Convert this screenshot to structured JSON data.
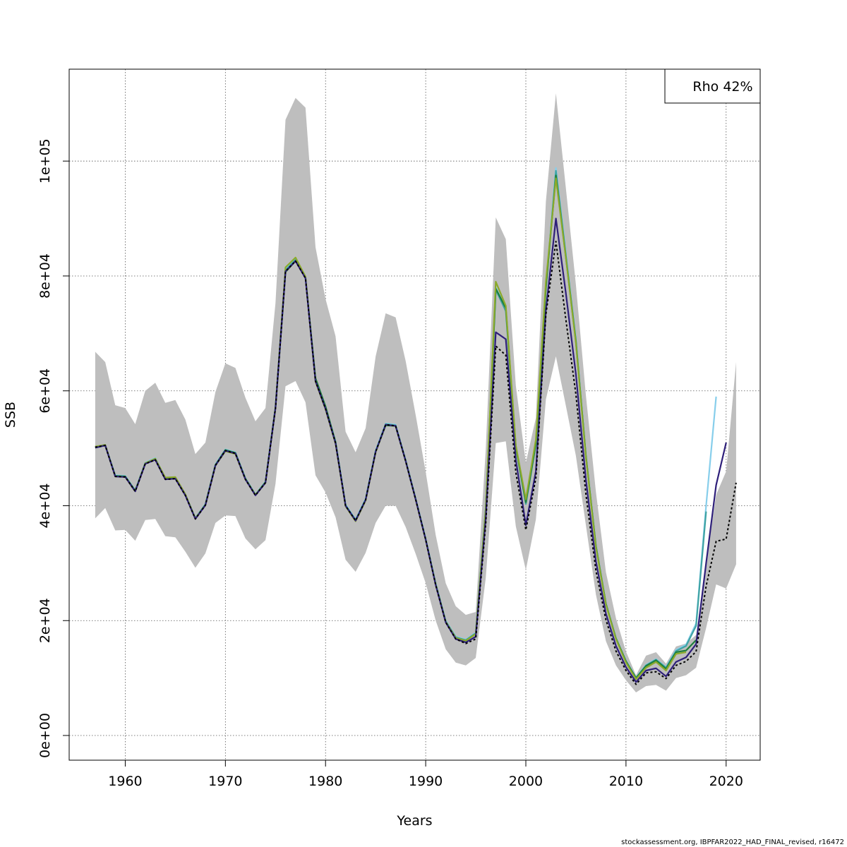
{
  "chart_data": {
    "type": "line",
    "xlabel": "Years",
    "ylabel": "SSB",
    "xlim": [
      1954.4,
      2023.4
    ],
    "ylim": [
      -4300,
      116000
    ],
    "xticks": [
      1960,
      1970,
      1980,
      1990,
      2000,
      2010,
      2020
    ],
    "xtick_labels": [
      "1960",
      "1970",
      "1980",
      "1990",
      "2000",
      "2010",
      "2020"
    ],
    "yticks": [
      0,
      20000,
      40000,
      60000,
      80000,
      100000
    ],
    "ytick_labels": [
      "0e+00",
      "2e+04",
      "4e+04",
      "6e+04",
      "8e+04",
      "1e+05"
    ],
    "grid": true,
    "legend": {
      "placement": "top-right",
      "text": "Rho 42%"
    },
    "band": {
      "color": "#bebebe",
      "x": [
        1957,
        1958,
        1959,
        1960,
        1961,
        1962,
        1963,
        1964,
        1965,
        1966,
        1967,
        1968,
        1969,
        1970,
        1971,
        1972,
        1973,
        1974,
        1975,
        1976,
        1977,
        1978,
        1979,
        1980,
        1981,
        1982,
        1983,
        1984,
        1985,
        1986,
        1987,
        1988,
        1989,
        1990,
        1991,
        1992,
        1993,
        1994,
        1995,
        1996,
        1997,
        1998,
        1999,
        2000,
        2001,
        2002,
        2003,
        2004,
        2005,
        2006,
        2007,
        2008,
        2009,
        2010,
        2011,
        2012,
        2013,
        2014,
        2015,
        2016,
        2017,
        2018,
        2019,
        2020,
        2021
      ],
      "upper": [
        66800,
        65000,
        57500,
        57000,
        54200,
        60000,
        61400,
        57900,
        58400,
        55000,
        49000,
        51000,
        59800,
        64800,
        64000,
        58800,
        54700,
        57000,
        75300,
        107200,
        111000,
        109300,
        85000,
        76000,
        69500,
        52900,
        49300,
        53500,
        66000,
        73500,
        72800,
        65200,
        55800,
        45900,
        34900,
        26500,
        22500,
        21000,
        21500,
        49800,
        90200,
        86400,
        60900,
        47500,
        55300,
        93000,
        111800,
        95300,
        78500,
        59200,
        42400,
        28400,
        20400,
        14600,
        10500,
        13900,
        14500,
        12500,
        15500,
        16000,
        17500,
        30000,
        41900,
        46000,
        65000
      ],
      "lower": [
        37800,
        39600,
        35700,
        35800,
        33900,
        37500,
        37700,
        34700,
        34500,
        32000,
        29200,
        31700,
        37000,
        38300,
        38200,
        34300,
        32400,
        34000,
        43800,
        60800,
        61700,
        58000,
        45300,
        42300,
        38000,
        30600,
        28500,
        31800,
        37000,
        40000,
        40000,
        36300,
        31600,
        26500,
        20000,
        15000,
        12700,
        12200,
        13500,
        27400,
        50900,
        51200,
        36400,
        28800,
        37600,
        58500,
        66000,
        57400,
        48700,
        36600,
        24500,
        16400,
        12200,
        9600,
        7500,
        8600,
        8800,
        7800,
        10000,
        10500,
        11800,
        18700,
        26300,
        25600,
        29800
      ]
    },
    "series": [
      {
        "color": "#87CEEB",
        "x": [
          1957,
          1958,
          1959,
          1960,
          1961,
          1962,
          1963,
          1964,
          1965,
          1966,
          1967,
          1968,
          1969,
          1970,
          1971,
          1972,
          1973,
          1974,
          1975,
          1976,
          1977,
          1978,
          1979,
          1980,
          1981,
          1982,
          1983,
          1984,
          1985,
          1986,
          1987,
          1988,
          1989,
          1990,
          1991,
          1992,
          1993,
          1994,
          1995,
          1996,
          1997,
          1998,
          1999,
          2000,
          2001,
          2002,
          2003,
          2004,
          2005,
          2006,
          2007,
          2008,
          2009,
          2010,
          2011,
          2012,
          2013,
          2014,
          2015,
          2016,
          2017,
          2018,
          2019
        ],
        "values": [
          50300,
          50600,
          45300,
          45200,
          42700,
          47500,
          48300,
          44800,
          44900,
          42000,
          37900,
          40300,
          47200,
          49800,
          49300,
          44800,
          42000,
          44200,
          57200,
          81300,
          83000,
          79900,
          62000,
          57200,
          51200,
          40200,
          37600,
          41200,
          49600,
          54300,
          54100,
          48000,
          41300,
          34300,
          26500,
          20000,
          17200,
          16700,
          17900,
          39800,
          78000,
          74300,
          50400,
          40500,
          50900,
          78200,
          98800,
          84000,
          69100,
          48900,
          33200,
          23000,
          17000,
          13000,
          10100,
          12300,
          13300,
          11900,
          14900,
          15800,
          19500,
          40000,
          59000
        ]
      },
      {
        "color": "#3FA3A3",
        "x": [
          1957,
          1958,
          1959,
          1960,
          1961,
          1962,
          1963,
          1964,
          1965,
          1966,
          1967,
          1968,
          1969,
          1970,
          1971,
          1972,
          1973,
          1974,
          1975,
          1976,
          1977,
          1978,
          1979,
          1980,
          1981,
          1982,
          1983,
          1984,
          1985,
          1986,
          1987,
          1988,
          1989,
          1990,
          1991,
          1992,
          1993,
          1994,
          1995,
          1996,
          1997,
          1998,
          1999,
          2000,
          2001,
          2002,
          2003,
          2004,
          2005,
          2006,
          2007,
          2008,
          2009,
          2010,
          2011,
          2012,
          2013,
          2014,
          2015,
          2016,
          2017,
          2018
        ],
        "values": [
          50100,
          50500,
          45200,
          45100,
          42600,
          47400,
          48200,
          44700,
          44800,
          41900,
          37800,
          40200,
          47100,
          49700,
          49200,
          44700,
          41900,
          44100,
          57100,
          81000,
          82800,
          79700,
          61800,
          57000,
          51000,
          40100,
          37500,
          41100,
          49500,
          54200,
          54000,
          47900,
          41200,
          34200,
          26400,
          19900,
          17100,
          16600,
          17800,
          39600,
          77600,
          73900,
          50200,
          40300,
          50600,
          77800,
          98300,
          83600,
          68800,
          48700,
          33000,
          22900,
          16900,
          12900,
          10000,
          12200,
          13200,
          11800,
          14700,
          15600,
          19100,
          39000
        ]
      },
      {
        "color": "#1E7F3C",
        "x": [
          1957,
          1958,
          1959,
          1960,
          1961,
          1962,
          1963,
          1964,
          1965,
          1966,
          1967,
          1968,
          1969,
          1970,
          1971,
          1972,
          1973,
          1974,
          1975,
          1976,
          1977,
          1978,
          1979,
          1980,
          1981,
          1982,
          1983,
          1984,
          1985,
          1986,
          1987,
          1988,
          1989,
          1990,
          1991,
          1992,
          1993,
          1994,
          1995,
          1996,
          1997,
          1998,
          1999,
          2000,
          2001,
          2002,
          2003,
          2004,
          2005,
          2006,
          2007,
          2008,
          2009,
          2010,
          2011,
          2012,
          2013,
          2014,
          2015,
          2016,
          2017
        ],
        "values": [
          50200,
          50500,
          45200,
          45100,
          42600,
          47400,
          48100,
          44700,
          44800,
          41900,
          37800,
          40200,
          47100,
          49700,
          49200,
          44700,
          41900,
          44100,
          57100,
          80700,
          82600,
          79700,
          62200,
          57300,
          51100,
          40000,
          37400,
          41000,
          49400,
          54000,
          53900,
          47800,
          41100,
          34100,
          26300,
          19800,
          17000,
          16500,
          17700,
          39300,
          77800,
          74400,
          50300,
          40600,
          50800,
          78000,
          97500,
          83300,
          68600,
          48700,
          33000,
          22900,
          16900,
          12900,
          10000,
          12100,
          13100,
          11600,
          14500,
          14800,
          16600
        ]
      },
      {
        "color": "#8BAA2B",
        "x": [
          1957,
          1958,
          1959,
          1960,
          1961,
          1962,
          1963,
          1964,
          1965,
          1966,
          1967,
          1968,
          1969,
          1970,
          1971,
          1972,
          1973,
          1974,
          1975,
          1976,
          1977,
          1978,
          1979,
          1980,
          1981,
          1982,
          1983,
          1984,
          1985,
          1986,
          1987,
          1988,
          1989,
          1990,
          1991,
          1992,
          1993,
          1994,
          1995,
          1996,
          1997,
          1998,
          1999,
          2000,
          2001,
          2002,
          2003,
          2004,
          2005,
          2006,
          2007,
          2008,
          2009,
          2010,
          2011,
          2012,
          2013,
          2014,
          2015,
          2016
        ],
        "values": [
          50300,
          50600,
          45100,
          45000,
          42500,
          47400,
          48200,
          44900,
          45000,
          42000,
          37800,
          40100,
          47000,
          49500,
          49000,
          44600,
          41900,
          44000,
          57000,
          81500,
          83200,
          79900,
          61600,
          56800,
          50800,
          39900,
          37300,
          40900,
          49300,
          54100,
          53900,
          47800,
          41100,
          34100,
          26300,
          19800,
          17000,
          16500,
          17700,
          39500,
          79000,
          74800,
          50500,
          41100,
          51500,
          79000,
          97000,
          83200,
          68400,
          48500,
          32800,
          22800,
          16800,
          12700,
          9800,
          11800,
          12800,
          11300,
          14200,
          14500
        ]
      },
      {
        "color": "#2E1F7A",
        "x": [
          1957,
          1958,
          1959,
          1960,
          1961,
          1962,
          1963,
          1964,
          1965,
          1966,
          1967,
          1968,
          1969,
          1970,
          1971,
          1972,
          1973,
          1974,
          1975,
          1976,
          1977,
          1978,
          1979,
          1980,
          1981,
          1982,
          1983,
          1984,
          1985,
          1986,
          1987,
          1988,
          1989,
          1990,
          1991,
          1992,
          1993,
          1994,
          1995,
          1996,
          1997,
          1998,
          1999,
          2000,
          2001,
          2002,
          2003,
          2004,
          2005,
          2006,
          2007,
          2008,
          2009,
          2010,
          2011,
          2012,
          2013,
          2014,
          2015,
          2016,
          2017,
          2018,
          2019,
          2020
        ],
        "values": [
          50100,
          50500,
          45100,
          45000,
          42500,
          47300,
          48000,
          44600,
          44700,
          41800,
          37700,
          40100,
          47000,
          49600,
          49100,
          44600,
          41800,
          44000,
          57000,
          80800,
          82600,
          79600,
          61700,
          56900,
          50900,
          40000,
          37400,
          41000,
          49400,
          54100,
          53900,
          47800,
          41100,
          34100,
          26200,
          19700,
          16800,
          16200,
          17200,
          37800,
          70200,
          69000,
          48000,
          36600,
          46000,
          74000,
          90000,
          77000,
          62900,
          44500,
          30300,
          21200,
          15600,
          11900,
          9300,
          11300,
          11700,
          10300,
          12800,
          13600,
          15900,
          30000,
          43600,
          51000
        ]
      },
      {
        "color": "#000000",
        "dashed": true,
        "x": [
          1957,
          1958,
          1959,
          1960,
          1961,
          1962,
          1963,
          1964,
          1965,
          1966,
          1967,
          1968,
          1969,
          1970,
          1971,
          1972,
          1973,
          1974,
          1975,
          1976,
          1977,
          1978,
          1979,
          1980,
          1981,
          1982,
          1983,
          1984,
          1985,
          1986,
          1987,
          1988,
          1989,
          1990,
          1991,
          1992,
          1993,
          1994,
          1995,
          1996,
          1997,
          1998,
          1999,
          2000,
          2001,
          2002,
          2003,
          2004,
          2005,
          2006,
          2007,
          2008,
          2009,
          2010,
          2011,
          2012,
          2013,
          2014,
          2015,
          2016,
          2017,
          2018,
          2019,
          2020,
          2021
        ],
        "values": [
          50200,
          50500,
          45100,
          45000,
          42500,
          47300,
          48000,
          44600,
          44700,
          41800,
          37700,
          40100,
          47000,
          49600,
          49100,
          44600,
          41800,
          44000,
          57000,
          80800,
          82600,
          79600,
          61700,
          56900,
          50900,
          40000,
          37400,
          41000,
          49400,
          54100,
          53900,
          47800,
          41100,
          34100,
          26200,
          19700,
          16800,
          16000,
          16800,
          36900,
          67800,
          66200,
          45800,
          35800,
          44800,
          73300,
          86000,
          72400,
          59400,
          42000,
          28700,
          20100,
          14700,
          11300,
          8900,
          10900,
          11100,
          9900,
          12200,
          12900,
          14600,
          26000,
          33800,
          34200,
          44000
        ]
      }
    ]
  },
  "footer": "stockassessment.org, IBPFAR2022_HAD_FINAL_revised, r16472"
}
